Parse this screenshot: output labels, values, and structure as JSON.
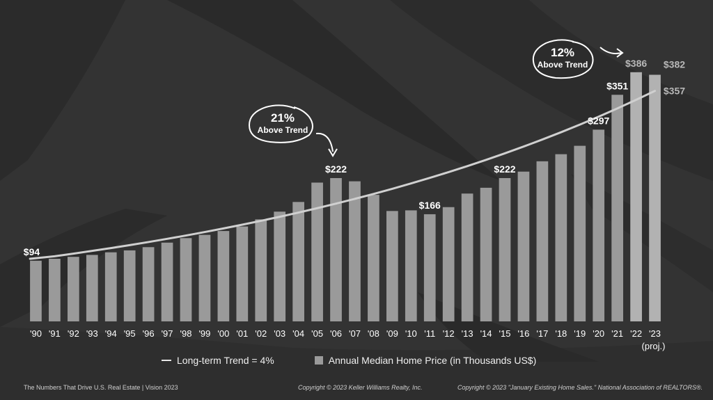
{
  "chart_data": {
    "type": "bar",
    "categories": [
      "'90",
      "'91",
      "'92",
      "'93",
      "'94",
      "'95",
      "'96",
      "'97",
      "'98",
      "'99",
      "'00",
      "'01",
      "'02",
      "'03",
      "'04",
      "'05",
      "'06",
      "'07",
      "'08",
      "'09",
      "'10",
      "'11",
      "'12",
      "'13",
      "'14",
      "'15",
      "'16",
      "'17",
      "'18",
      "'19",
      "'20",
      "'21",
      "'22",
      "'23"
    ],
    "category_sublabel": "(proj.)",
    "series": [
      {
        "name": "Annual Median Home Price (in Thousands US$)",
        "values": [
          94,
          97,
          100,
          103,
          107,
          110,
          115,
          122,
          129,
          134,
          140,
          147,
          158,
          170,
          185,
          215,
          222,
          217,
          196,
          171,
          172,
          166,
          177,
          198,
          207,
          222,
          232,
          248,
          259,
          272,
          297,
          351,
          386,
          382
        ]
      },
      {
        "name": "Long-term Trend = 4%",
        "type": "line",
        "start": 97,
        "end": 357,
        "growth_rate": 0.04
      }
    ],
    "highlight_colors": {
      "'22": "#b2b2b2",
      "'23": "#b2b2b2"
    },
    "value_labels": [
      {
        "category": "'90",
        "text": "$94",
        "color": "#ffffff"
      },
      {
        "category": "'06",
        "text": "$222",
        "color": "#ffffff"
      },
      {
        "category": "'11",
        "text": "$166",
        "color": "#ffffff"
      },
      {
        "category": "'15",
        "text": "$222",
        "color": "#ffffff"
      },
      {
        "category": "'20",
        "text": "$297",
        "color": "#ffffff"
      },
      {
        "category": "'21",
        "text": "$351",
        "color": "#ffffff"
      },
      {
        "category": "'22",
        "text": "$386",
        "color": "#b8b8b8"
      },
      {
        "category": "'23",
        "text": "$382",
        "color": "#b8b8b8"
      },
      {
        "category": "'23",
        "text": "$357",
        "color": "#b8b8b8",
        "for": "trend"
      }
    ],
    "annotations": [
      {
        "pct": "21%",
        "text": "Above Trend"
      },
      {
        "pct": "12%",
        "text": "Above Trend"
      }
    ],
    "legend_position": "bottom",
    "grid": false
  },
  "legend": {
    "trend_label": "Long-term Trend = 4%",
    "bar_label": "Annual Median Home Price (in Thousands US$)"
  },
  "footer": {
    "left": "The Numbers That Drive U.S. Real Estate  |  Vision 2023",
    "center": "Copyright © 2023 Keller Williams Realty, Inc.",
    "right": "Copyright © 2023 \"January Existing Home Sales.\" National Association of REALTORS®."
  },
  "colors": {
    "background": "#333333",
    "bar": "#9a9a9a",
    "bar_highlight": "#b2b2b2",
    "trend": "#d0d0d0"
  }
}
